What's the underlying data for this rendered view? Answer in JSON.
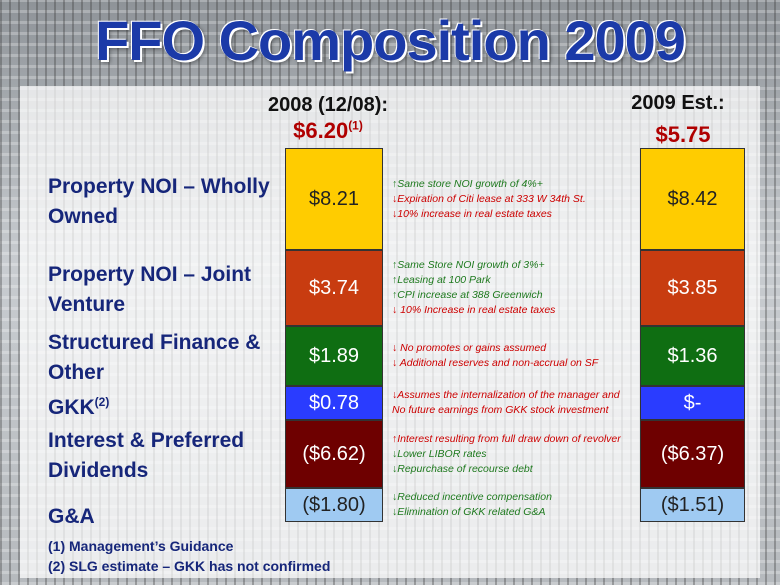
{
  "slide": {
    "title": "FFO Composition 2009",
    "footnotes": [
      "(1) Management’s Guidance",
      "(2) SLG estimate – GKK has not confirmed"
    ]
  },
  "columns": [
    {
      "header": "2008 (12/08):",
      "total": "$6.20",
      "total_sup": "(1)"
    },
    {
      "header": "2009 Est.:",
      "total": "$5.75",
      "total_sup": ""
    }
  ],
  "rows": [
    {
      "label": "Property NOI – Wholly Owned",
      "label_sup": "",
      "v2008": "$8.21",
      "v2009": "$8.42",
      "notes": [
        {
          "text": "↑Same store NOI growth of 4%+",
          "color": "#1f7a1f"
        },
        {
          "text": "↓Expiration of Citi lease at 333 W 34th St.",
          "color": "#cc0000"
        },
        {
          "text": "↓10% increase in real estate taxes",
          "color": "#cc0000"
        }
      ]
    },
    {
      "label": "Property NOI – Joint Venture",
      "label_sup": "",
      "v2008": "$3.74",
      "v2009": "$3.85",
      "notes": [
        {
          "text": "↑Same Store NOI growth of 3%+",
          "color": "#1f7a1f"
        },
        {
          "text": "↑Leasing at 100 Park",
          "color": "#1f7a1f"
        },
        {
          "text": "↑CPI increase at 388 Greenwich",
          "color": "#1f7a1f"
        },
        {
          "text": "↓ 10% Increase in real estate taxes",
          "color": "#cc0000"
        }
      ]
    },
    {
      "label": "Structured Finance & Other",
      "label_sup": "",
      "v2008": "$1.89",
      "v2009": "$1.36",
      "notes": [
        {
          "text": "↓ No promotes or gains assumed",
          "color": "#cc0000"
        },
        {
          "text": "↓ Additional reserves and non-accrual on SF",
          "color": "#cc0000"
        }
      ]
    },
    {
      "label": "GKK",
      "label_sup": "(2)",
      "v2008": "$0.78",
      "v2009": "$-",
      "notes": [
        {
          "text": "↓Assumes the internalization of the manager and",
          "color": "#cc0000"
        },
        {
          "text": "No future earnings from GKK stock investment",
          "color": "#cc0000"
        }
      ]
    },
    {
      "label": "Interest & Preferred Dividends",
      "label_sup": "",
      "v2008": "($6.62)",
      "v2009": "($6.37)",
      "notes": [
        {
          "text": "↑Interest resulting from full draw down of revolver",
          "color": "#cc0000"
        },
        {
          "text": "↓Lower LIBOR rates",
          "color": "#1f7a1f"
        },
        {
          "text": "↓Repurchase of recourse debt",
          "color": "#1f7a1f"
        }
      ]
    },
    {
      "label": "G&A",
      "label_sup": "",
      "v2008": "($1.80)",
      "v2009": "($1.51)",
      "notes": [
        {
          "text": "↓Reduced incentive compensation",
          "color": "#1f7a1f"
        },
        {
          "text": "↓Elimination of GKK related G&A",
          "color": "#1f7a1f"
        }
      ]
    }
  ],
  "chart_data": {
    "type": "bar",
    "stacked": true,
    "categories": [
      "2008 (12/08):",
      "2009 Est.:"
    ],
    "totals": [
      6.2,
      5.75
    ],
    "series": [
      {
        "name": "Property NOI – Wholly Owned",
        "values": [
          8.21,
          8.42
        ],
        "color": "#ffcc00"
      },
      {
        "name": "Property NOI – Joint Venture",
        "values": [
          3.74,
          3.85
        ],
        "color": "#c83c10"
      },
      {
        "name": "Structured Finance & Other",
        "values": [
          1.89,
          1.36
        ],
        "color": "#0f6e12"
      },
      {
        "name": "GKK",
        "values": [
          0.78,
          0
        ],
        "color": "#2a3cff"
      },
      {
        "name": "Interest & Preferred Dividends",
        "values": [
          -6.62,
          -6.37
        ],
        "color": "#6e0000"
      },
      {
        "name": "G&A",
        "values": [
          -1.8,
          -1.51
        ],
        "color": "#9fcaf2"
      }
    ]
  }
}
